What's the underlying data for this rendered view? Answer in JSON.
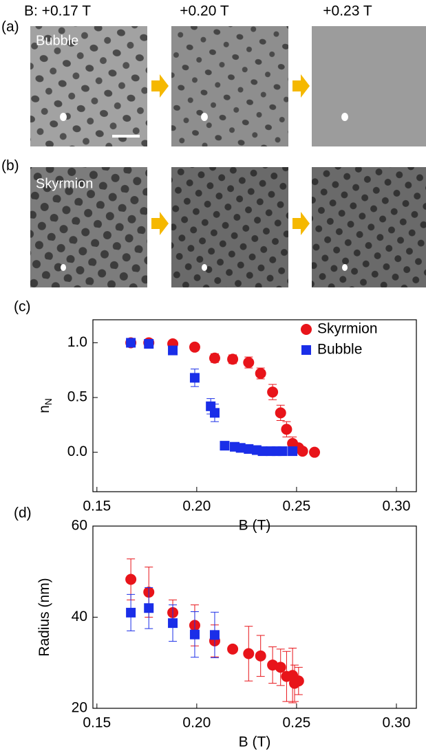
{
  "images": {
    "field_labels": [
      "B: +0.17 T",
      "+0.20 T",
      "+0.23 T"
    ],
    "rows": [
      {
        "panel_label": "(a)",
        "label": "Bubble"
      },
      {
        "panel_label": "(b)",
        "label": "Skyrmion"
      }
    ]
  },
  "chart_data": [
    {
      "type": "scatter",
      "panel_label": "(c)",
      "xlabel": "B (T)",
      "ylabel": "n",
      "ylabel_subscript": "N",
      "xlim": [
        0.148,
        0.31
      ],
      "ylim": [
        -0.36,
        1.21
      ],
      "xticks": [
        0.15,
        {
          "value": 0.2,
          "label": "0.20"
        },
        0.25,
        {
          "value": 0.3,
          "label": "0.30"
        }
      ],
      "yticks": [
        {
          "value": 0,
          "label": "0.0"
        },
        0.5,
        {
          "value": 1,
          "label": "1.0"
        }
      ],
      "legend": "upper right",
      "series": [
        {
          "name": "Skyrmion",
          "color": "#e8141a",
          "marker": "circle",
          "x": [
            0.167,
            0.176,
            0.188,
            0.199,
            0.209,
            0.218,
            0.226,
            0.232,
            0.238,
            0.242,
            0.245,
            0.248,
            0.251,
            0.253,
            0.259
          ],
          "values": [
            1.0,
            1.0,
            0.99,
            0.96,
            0.86,
            0.85,
            0.82,
            0.72,
            0.55,
            0.36,
            0.21,
            0.08,
            0.04,
            0.01,
            0.0
          ],
          "errors": [
            0.02,
            0.02,
            0.02,
            0.03,
            0.04,
            0.04,
            0.05,
            0.05,
            0.07,
            0.07,
            0.07,
            0.06,
            0.03,
            0.02,
            0.01
          ]
        },
        {
          "name": "Bubble",
          "color": "#1a2ee8",
          "marker": "square",
          "x": [
            0.167,
            0.176,
            0.188,
            0.199,
            0.207,
            0.209,
            0.214,
            0.219,
            0.222,
            0.226,
            0.23,
            0.233,
            0.237,
            0.24,
            0.243,
            0.248
          ],
          "values": [
            1.0,
            0.99,
            0.93,
            0.68,
            0.42,
            0.36,
            0.06,
            0.05,
            0.04,
            0.03,
            0.02,
            0.01,
            0.01,
            0.01,
            0.01,
            0.01
          ],
          "errors": [
            0.03,
            0.02,
            0.03,
            0.08,
            0.07,
            0.08,
            0.02,
            0.01,
            0.01,
            0.01,
            0.01,
            0.01,
            0.01,
            0.01,
            0.01,
            0.01
          ]
        }
      ]
    },
    {
      "type": "scatter",
      "panel_label": "(d)",
      "xlabel": "B (T)",
      "ylabel": "Radius (nm)",
      "xlim": [
        0.148,
        0.31
      ],
      "ylim": [
        20,
        60
      ],
      "xticks": [
        0.15,
        {
          "value": 0.2,
          "label": "0.20"
        },
        0.25,
        {
          "value": 0.3,
          "label": "0.30"
        }
      ],
      "yticks": [
        20,
        40,
        60
      ],
      "series": [
        {
          "name": "Skyrmion",
          "color": "#e8141a",
          "marker": "circle",
          "x": [
            0.167,
            0.176,
            0.188,
            0.199,
            0.209,
            0.218,
            0.226,
            0.232,
            0.238,
            0.242,
            0.245,
            0.248,
            0.249,
            0.251
          ],
          "values": [
            48.3,
            45.5,
            41,
            38.2,
            34.8,
            33,
            32,
            31.5,
            29.5,
            29,
            27,
            27.2,
            25.5,
            26
          ],
          "errors": [
            4.5,
            5.5,
            2.8,
            4.5,
            3.5,
            0.5,
            6,
            4.5,
            4,
            4,
            5.5,
            6,
            4,
            3
          ]
        },
        {
          "name": "Bubble",
          "color": "#1a2ee8",
          "marker": "square",
          "x": [
            0.167,
            0.176,
            0.188,
            0.199,
            0.209
          ],
          "values": [
            41,
            42,
            38.7,
            36.2,
            36.1
          ],
          "errors": [
            4,
            4.5,
            4,
            5,
            5
          ]
        }
      ]
    }
  ]
}
